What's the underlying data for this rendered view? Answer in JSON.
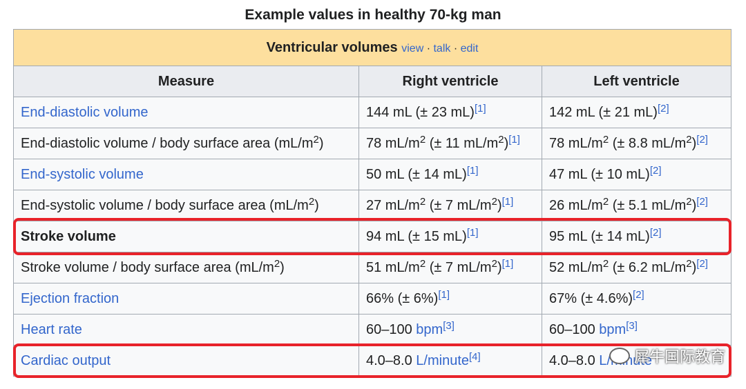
{
  "caption": "Example values in healthy 70-kg man",
  "table": {
    "title": "Ventricular volumes",
    "nav": [
      "view",
      "talk",
      "edit"
    ],
    "headers": [
      "Measure",
      "Right ventricle",
      "Left ventricle"
    ],
    "rows": [
      {
        "measure": "End-diastolic volume",
        "rv": "144 mL (± 23 mL)",
        "rv_ref": "[1]",
        "lv": "142 mL (± 21 mL)",
        "lv_ref": "[2]"
      },
      {
        "measure": "End-diastolic volume / body surface area (mL/m",
        "measure_sup": "2",
        "measure_tail": ")",
        "rv_a": "78 mL/m",
        "rv_sup1": "2",
        "rv_b": " (± 11 mL/m",
        "rv_sup2": "2",
        "rv_c": ")",
        "rv_ref": "[1]",
        "lv_a": "78 mL/m",
        "lv_sup1": "2",
        "lv_b": " (± 8.8 mL/m",
        "lv_sup2": "2",
        "lv_c": ")",
        "lv_ref": "[2]"
      },
      {
        "measure": "End-systolic volume",
        "rv": "50 mL (± 14 mL)",
        "rv_ref": "[1]",
        "lv": "47 mL (± 10 mL)",
        "lv_ref": "[2]"
      },
      {
        "measure": "End-systolic volume / body surface area (mL/m",
        "measure_sup": "2",
        "measure_tail": ")",
        "rv_a": "27 mL/m",
        "rv_sup1": "2",
        "rv_b": " (± 7 mL/m",
        "rv_sup2": "2",
        "rv_c": ")",
        "rv_ref": "[1]",
        "lv_a": "26 mL/m",
        "lv_sup1": "2",
        "lv_b": " (± 5.1 mL/m",
        "lv_sup2": "2",
        "lv_c": ")",
        "lv_ref": "[2]"
      },
      {
        "measure": "Stroke volume",
        "rv": "94 mL (± 15 mL)",
        "rv_ref": "[1]",
        "lv": "95 mL (± 14 mL)",
        "lv_ref": "[2]"
      },
      {
        "measure": "Stroke volume / body surface area (mL/m",
        "measure_sup": "2",
        "measure_tail": ")",
        "rv_a": "51 mL/m",
        "rv_sup1": "2",
        "rv_b": " (± 7 mL/m",
        "rv_sup2": "2",
        "rv_c": ")",
        "rv_ref": "[1]",
        "lv_a": "52 mL/m",
        "lv_sup1": "2",
        "lv_b": " (± 6.2 mL/m",
        "lv_sup2": "2",
        "lv_c": ")",
        "lv_ref": "[2]"
      },
      {
        "measure": "Ejection fraction",
        "rv": "66% (± 6%)",
        "rv_ref": "[1]",
        "lv": "67% (± 4.6%)",
        "lv_ref": "[2]"
      },
      {
        "measure": "Heart rate",
        "rv_a": "60–100 ",
        "rv_link": "bpm",
        "rv_ref": "[3]",
        "lv_a": "60–100 ",
        "lv_link": "bpm",
        "lv_ref": "[3]"
      },
      {
        "measure": "Cardiac output",
        "rv_a": "4.0–8.0 ",
        "rv_link": "L/minute",
        "rv_ref": "[4]",
        "lv_a": "4.0–8.0 ",
        "lv_link": "L/minute",
        "lv_ref": ""
      }
    ]
  },
  "watermark": "犀牛国际教育",
  "colors": {
    "highlight": "#e8232a",
    "title_bg": "#fddf9e",
    "header_bg": "#eaecf0",
    "link": "#3366cc"
  }
}
